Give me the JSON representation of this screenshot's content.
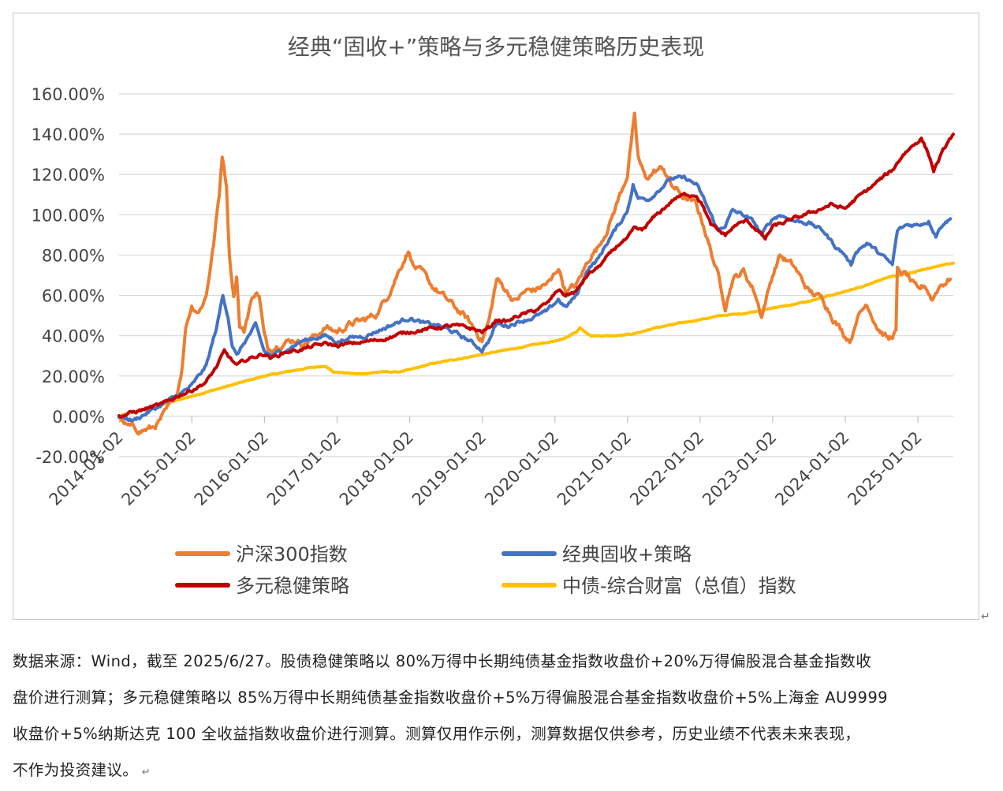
{
  "chart_data": {
    "type": "line",
    "title": "经典“固收+”策略与多元稳健策略历史表现",
    "y_ticks": [
      "160.00%",
      "140.00%",
      "120.00%",
      "100.00%",
      "80.00%",
      "60.00%",
      "40.00%",
      "20.00%",
      "0.00%",
      "-20.00%"
    ],
    "x_ticks": [
      "2014-01-02",
      "2015-01-02",
      "2016-01-02",
      "2017-01-02",
      "2018-01-02",
      "2019-01-02",
      "2020-01-02",
      "2021-01-02",
      "2022-01-02",
      "2023-01-02",
      "2024-01-02",
      "2025-01-02"
    ],
    "ylim": [
      -20,
      160
    ],
    "xlim": [
      2014.0,
      2025.49
    ],
    "grid": true,
    "legend_position": "bottom",
    "series": [
      {
        "name": "沪深300指数",
        "color": "#ED7D31",
        "points": [
          [
            2014.0,
            0
          ],
          [
            2014.1,
            -5
          ],
          [
            2014.3,
            -7
          ],
          [
            2014.45,
            -6
          ],
          [
            2014.55,
            -3
          ],
          [
            2014.7,
            5
          ],
          [
            2014.8,
            12
          ],
          [
            2014.87,
            25
          ],
          [
            2014.92,
            45
          ],
          [
            2015.0,
            55
          ],
          [
            2015.1,
            52
          ],
          [
            2015.2,
            60
          ],
          [
            2015.3,
            85
          ],
          [
            2015.38,
            110
          ],
          [
            2015.42,
            130
          ],
          [
            2015.48,
            115
          ],
          [
            2015.52,
            80
          ],
          [
            2015.58,
            60
          ],
          [
            2015.62,
            70
          ],
          [
            2015.66,
            45
          ],
          [
            2015.72,
            42
          ],
          [
            2015.8,
            55
          ],
          [
            2015.88,
            62
          ],
          [
            2015.93,
            60
          ],
          [
            2016.0,
            40
          ],
          [
            2016.05,
            33
          ],
          [
            2016.2,
            36
          ],
          [
            2016.4,
            38
          ],
          [
            2016.55,
            36
          ],
          [
            2016.7,
            40
          ],
          [
            2016.85,
            44
          ],
          [
            2017.0,
            42
          ],
          [
            2017.2,
            46
          ],
          [
            2017.4,
            48
          ],
          [
            2017.55,
            51
          ],
          [
            2017.7,
            60
          ],
          [
            2017.85,
            72
          ],
          [
            2017.95,
            80
          ],
          [
            2018.0,
            82
          ],
          [
            2018.05,
            75
          ],
          [
            2018.2,
            70
          ],
          [
            2018.3,
            65
          ],
          [
            2018.45,
            60
          ],
          [
            2018.6,
            55
          ],
          [
            2018.8,
            48
          ],
          [
            2019.0,
            38
          ],
          [
            2019.1,
            48
          ],
          [
            2019.2,
            68
          ],
          [
            2019.3,
            64
          ],
          [
            2019.45,
            57
          ],
          [
            2019.6,
            62
          ],
          [
            2019.75,
            63
          ],
          [
            2019.95,
            67
          ],
          [
            2020.05,
            74
          ],
          [
            2020.15,
            62
          ],
          [
            2020.3,
            65
          ],
          [
            2020.5,
            80
          ],
          [
            2020.6,
            84
          ],
          [
            2020.75,
            95
          ],
          [
            2020.9,
            110
          ],
          [
            2021.0,
            120
          ],
          [
            2021.05,
            135
          ],
          [
            2021.1,
            148
          ],
          [
            2021.15,
            128
          ],
          [
            2021.25,
            118
          ],
          [
            2021.4,
            122
          ],
          [
            2021.5,
            123
          ],
          [
            2021.6,
            115
          ],
          [
            2021.8,
            108
          ],
          [
            2021.95,
            105
          ],
          [
            2022.05,
            95
          ],
          [
            2022.15,
            82
          ],
          [
            2022.25,
            70
          ],
          [
            2022.35,
            55
          ],
          [
            2022.45,
            68
          ],
          [
            2022.6,
            72
          ],
          [
            2022.75,
            62
          ],
          [
            2022.85,
            50
          ],
          [
            2023.0,
            70
          ],
          [
            2023.1,
            80
          ],
          [
            2023.3,
            74
          ],
          [
            2023.5,
            62
          ],
          [
            2023.7,
            58
          ],
          [
            2023.85,
            48
          ],
          [
            2024.0,
            40
          ],
          [
            2024.08,
            38
          ],
          [
            2024.15,
            48
          ],
          [
            2024.3,
            56
          ],
          [
            2024.45,
            44
          ],
          [
            2024.6,
            38
          ],
          [
            2024.7,
            42
          ],
          [
            2024.72,
            72
          ],
          [
            2024.85,
            70
          ],
          [
            2025.0,
            62
          ],
          [
            2025.1,
            65
          ],
          [
            2025.2,
            58
          ],
          [
            2025.3,
            65
          ],
          [
            2025.45,
            68
          ]
        ]
      },
      {
        "name": "经典固收+策略",
        "color": "#4472C4",
        "points": [
          [
            2014.0,
            0
          ],
          [
            2014.2,
            -2
          ],
          [
            2014.4,
            2
          ],
          [
            2014.6,
            6
          ],
          [
            2014.8,
            10
          ],
          [
            2015.0,
            15
          ],
          [
            2015.2,
            25
          ],
          [
            2015.35,
            45
          ],
          [
            2015.43,
            60
          ],
          [
            2015.5,
            50
          ],
          [
            2015.56,
            35
          ],
          [
            2015.62,
            30
          ],
          [
            2015.75,
            38
          ],
          [
            2015.88,
            45
          ],
          [
            2016.0,
            32
          ],
          [
            2016.1,
            30
          ],
          [
            2016.3,
            33
          ],
          [
            2016.5,
            37
          ],
          [
            2016.7,
            39
          ],
          [
            2016.85,
            40
          ],
          [
            2017.0,
            37
          ],
          [
            2017.2,
            39
          ],
          [
            2017.4,
            40
          ],
          [
            2017.6,
            43
          ],
          [
            2017.8,
            46
          ],
          [
            2018.0,
            49
          ],
          [
            2018.2,
            46
          ],
          [
            2018.4,
            45
          ],
          [
            2018.6,
            42
          ],
          [
            2018.8,
            38
          ],
          [
            2019.0,
            33
          ],
          [
            2019.1,
            38
          ],
          [
            2019.2,
            46
          ],
          [
            2019.35,
            45
          ],
          [
            2019.5,
            47
          ],
          [
            2019.7,
            49
          ],
          [
            2019.9,
            52
          ],
          [
            2020.05,
            58
          ],
          [
            2020.15,
            54
          ],
          [
            2020.3,
            60
          ],
          [
            2020.45,
            73
          ],
          [
            2020.6,
            78
          ],
          [
            2020.75,
            88
          ],
          [
            2020.9,
            96
          ],
          [
            2021.0,
            102
          ],
          [
            2021.08,
            115
          ],
          [
            2021.15,
            108
          ],
          [
            2021.3,
            108
          ],
          [
            2021.45,
            113
          ],
          [
            2021.6,
            118
          ],
          [
            2021.8,
            118
          ],
          [
            2021.95,
            115
          ],
          [
            2022.05,
            108
          ],
          [
            2022.15,
            100
          ],
          [
            2022.25,
            92
          ],
          [
            2022.35,
            95
          ],
          [
            2022.45,
            102
          ],
          [
            2022.6,
            100
          ],
          [
            2022.75,
            96
          ],
          [
            2022.85,
            90
          ],
          [
            2023.0,
            98
          ],
          [
            2023.1,
            100
          ],
          [
            2023.3,
            97
          ],
          [
            2023.5,
            96
          ],
          [
            2023.7,
            92
          ],
          [
            2023.85,
            85
          ],
          [
            2024.0,
            80
          ],
          [
            2024.08,
            75
          ],
          [
            2024.15,
            82
          ],
          [
            2024.3,
            86
          ],
          [
            2024.5,
            80
          ],
          [
            2024.65,
            75
          ],
          [
            2024.72,
            92
          ],
          [
            2024.85,
            95
          ],
          [
            2025.0,
            95
          ],
          [
            2025.15,
            97
          ],
          [
            2025.25,
            90
          ],
          [
            2025.35,
            96
          ],
          [
            2025.45,
            98
          ]
        ]
      },
      {
        "name": "多元稳健策略",
        "color": "#C00000",
        "points": [
          [
            2014.0,
            0
          ],
          [
            2014.2,
            2
          ],
          [
            2014.4,
            4
          ],
          [
            2014.6,
            6
          ],
          [
            2014.8,
            10
          ],
          [
            2015.0,
            13
          ],
          [
            2015.2,
            17
          ],
          [
            2015.35,
            25
          ],
          [
            2015.45,
            32
          ],
          [
            2015.55,
            28
          ],
          [
            2015.62,
            25
          ],
          [
            2015.75,
            28
          ],
          [
            2015.9,
            30
          ],
          [
            2016.0,
            31
          ],
          [
            2016.1,
            29
          ],
          [
            2016.3,
            32
          ],
          [
            2016.5,
            33
          ],
          [
            2016.7,
            35
          ],
          [
            2016.85,
            36
          ],
          [
            2017.0,
            35
          ],
          [
            2017.2,
            36
          ],
          [
            2017.4,
            37
          ],
          [
            2017.6,
            38
          ],
          [
            2017.8,
            40
          ],
          [
            2018.0,
            42
          ],
          [
            2018.2,
            43
          ],
          [
            2018.4,
            44
          ],
          [
            2018.6,
            45
          ],
          [
            2018.8,
            44
          ],
          [
            2019.0,
            42
          ],
          [
            2019.1,
            44
          ],
          [
            2019.2,
            48
          ],
          [
            2019.35,
            47
          ],
          [
            2019.5,
            50
          ],
          [
            2019.7,
            52
          ],
          [
            2019.9,
            56
          ],
          [
            2020.05,
            63
          ],
          [
            2020.15,
            60
          ],
          [
            2020.3,
            62
          ],
          [
            2020.45,
            70
          ],
          [
            2020.6,
            74
          ],
          [
            2020.75,
            80
          ],
          [
            2020.9,
            86
          ],
          [
            2021.0,
            88
          ],
          [
            2021.1,
            93
          ],
          [
            2021.2,
            92
          ],
          [
            2021.35,
            98
          ],
          [
            2021.5,
            103
          ],
          [
            2021.65,
            108
          ],
          [
            2021.8,
            110
          ],
          [
            2021.95,
            110
          ],
          [
            2022.05,
            104
          ],
          [
            2022.15,
            95
          ],
          [
            2022.25,
            92
          ],
          [
            2022.35,
            90
          ],
          [
            2022.5,
            95
          ],
          [
            2022.65,
            97
          ],
          [
            2022.8,
            92
          ],
          [
            2022.9,
            88
          ],
          [
            2023.0,
            94
          ],
          [
            2023.15,
            96
          ],
          [
            2023.3,
            98
          ],
          [
            2023.45,
            100
          ],
          [
            2023.6,
            102
          ],
          [
            2023.8,
            105
          ],
          [
            2024.0,
            103
          ],
          [
            2024.15,
            108
          ],
          [
            2024.3,
            112
          ],
          [
            2024.5,
            118
          ],
          [
            2024.65,
            122
          ],
          [
            2024.8,
            130
          ],
          [
            2024.95,
            135
          ],
          [
            2025.05,
            138
          ],
          [
            2025.15,
            130
          ],
          [
            2025.22,
            122
          ],
          [
            2025.3,
            128
          ],
          [
            2025.4,
            135
          ],
          [
            2025.49,
            140
          ]
        ]
      },
      {
        "name": "中债-综合财富（总值）指数",
        "color": "#FFC000",
        "points": [
          [
            2014.0,
            0
          ],
          [
            2014.3,
            3
          ],
          [
            2014.6,
            6
          ],
          [
            2014.9,
            9
          ],
          [
            2015.2,
            12
          ],
          [
            2015.5,
            15
          ],
          [
            2015.8,
            18
          ],
          [
            2016.0,
            20
          ],
          [
            2016.3,
            22
          ],
          [
            2016.6,
            24
          ],
          [
            2016.85,
            25
          ],
          [
            2016.95,
            22
          ],
          [
            2017.3,
            21
          ],
          [
            2017.6,
            22
          ],
          [
            2017.85,
            22
          ],
          [
            2018.0,
            23
          ],
          [
            2018.3,
            26
          ],
          [
            2018.6,
            28
          ],
          [
            2018.9,
            30
          ],
          [
            2019.2,
            32
          ],
          [
            2019.5,
            34
          ],
          [
            2019.8,
            36
          ],
          [
            2020.1,
            38
          ],
          [
            2020.3,
            42
          ],
          [
            2020.35,
            44
          ],
          [
            2020.5,
            40
          ],
          [
            2020.8,
            40
          ],
          [
            2021.1,
            41
          ],
          [
            2021.4,
            44
          ],
          [
            2021.7,
            46
          ],
          [
            2022.0,
            48
          ],
          [
            2022.3,
            50
          ],
          [
            2022.6,
            51
          ],
          [
            2022.9,
            53
          ],
          [
            2023.2,
            55
          ],
          [
            2023.5,
            57
          ],
          [
            2023.8,
            60
          ],
          [
            2024.0,
            62
          ],
          [
            2024.3,
            65
          ],
          [
            2024.6,
            69
          ],
          [
            2024.9,
            71
          ],
          [
            2025.2,
            74
          ],
          [
            2025.49,
            76
          ]
        ]
      }
    ]
  },
  "note": {
    "lines": [
      "数据来源：Wind，截至 2025/6/27。股债稳健策略以 80%万得中长期纯债基金指数收盘价+20%万得偏股混合基金指数收",
      "盘价进行测算；多元稳健策略以 85%万得中长期纯债基金指数收盘价+5%万得偏股混合基金指数收盘价+5%上海金 AU9999",
      "收盘价+5%纳斯达克 100 全收益指数收盘价进行测算。测算仅用作示例，测算数据仅供参考，历史业绩不代表未来表现，",
      "不作为投资建议。"
    ]
  }
}
